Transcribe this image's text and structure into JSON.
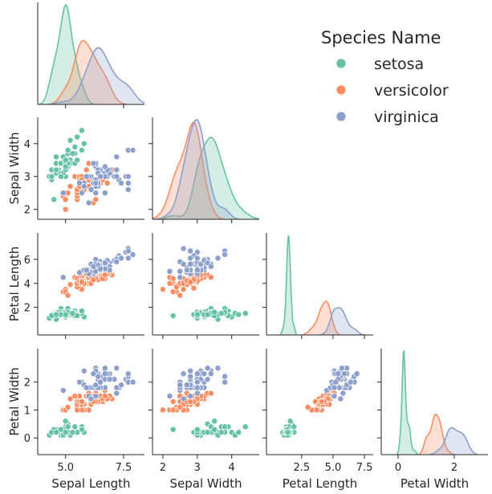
{
  "chart_data": {
    "type": "scatter",
    "subtype": "pairplot-lower-triangle",
    "variables": [
      "Sepal Length",
      "Sepal Width",
      "Petal Length",
      "Petal Width"
    ],
    "ranges": {
      "Sepal Length": [
        3.8,
        8.4
      ],
      "Sepal Width": [
        1.7,
        4.8
      ],
      "Petal Length": [
        -0.3,
        8.2
      ],
      "Petal Width": [
        -0.6,
        3.2
      ]
    },
    "ticks": {
      "Sepal Length": [
        "5.0",
        "7.5"
      ],
      "Sepal Width": [
        "2",
        "3",
        "4"
      ],
      "Petal Length": [
        "2.5",
        "5.0",
        "7.5"
      ],
      "Petal Width": [
        "0",
        "2"
      ]
    },
    "y_ticks": {
      "Sepal Width": [
        "2",
        "3",
        "4"
      ],
      "Petal Length": [
        "2",
        "4",
        "6"
      ],
      "Petal Width": [
        "0",
        "1",
        "2"
      ]
    },
    "legend": {
      "title": "Species Name",
      "placement": "top-right"
    },
    "grid": false,
    "series": [
      {
        "name": "setosa",
        "color": "#66c2a5",
        "points": [
          [
            5.1,
            3.5,
            1.4,
            0.2
          ],
          [
            4.9,
            3.0,
            1.4,
            0.2
          ],
          [
            4.7,
            3.2,
            1.3,
            0.2
          ],
          [
            4.6,
            3.1,
            1.5,
            0.2
          ],
          [
            5.0,
            3.6,
            1.4,
            0.2
          ],
          [
            5.4,
            3.9,
            1.7,
            0.4
          ],
          [
            4.6,
            3.4,
            1.4,
            0.3
          ],
          [
            5.0,
            3.4,
            1.5,
            0.2
          ],
          [
            4.4,
            2.9,
            1.4,
            0.2
          ],
          [
            4.9,
            3.1,
            1.5,
            0.1
          ],
          [
            5.4,
            3.7,
            1.5,
            0.2
          ],
          [
            4.8,
            3.4,
            1.6,
            0.2
          ],
          [
            4.8,
            3.0,
            1.4,
            0.1
          ],
          [
            4.3,
            3.0,
            1.1,
            0.1
          ],
          [
            5.8,
            4.0,
            1.2,
            0.2
          ],
          [
            5.7,
            4.4,
            1.5,
            0.4
          ],
          [
            5.4,
            3.9,
            1.3,
            0.4
          ],
          [
            5.1,
            3.5,
            1.4,
            0.3
          ],
          [
            5.7,
            3.8,
            1.7,
            0.3
          ],
          [
            5.1,
            3.8,
            1.5,
            0.3
          ],
          [
            5.4,
            3.4,
            1.7,
            0.2
          ],
          [
            5.1,
            3.7,
            1.5,
            0.4
          ],
          [
            4.6,
            3.6,
            1.0,
            0.2
          ],
          [
            5.1,
            3.3,
            1.7,
            0.5
          ],
          [
            4.8,
            3.4,
            1.9,
            0.2
          ],
          [
            5.0,
            3.0,
            1.6,
            0.2
          ],
          [
            5.0,
            3.4,
            1.6,
            0.4
          ],
          [
            5.2,
            3.5,
            1.5,
            0.2
          ],
          [
            5.2,
            3.4,
            1.4,
            0.2
          ],
          [
            4.7,
            3.2,
            1.6,
            0.2
          ],
          [
            4.8,
            3.1,
            1.6,
            0.2
          ],
          [
            5.4,
            3.4,
            1.5,
            0.4
          ],
          [
            5.2,
            4.1,
            1.5,
            0.1
          ],
          [
            5.5,
            4.2,
            1.4,
            0.2
          ],
          [
            4.9,
            3.1,
            1.5,
            0.2
          ],
          [
            5.0,
            3.2,
            1.2,
            0.2
          ],
          [
            5.5,
            3.5,
            1.3,
            0.2
          ],
          [
            4.9,
            3.6,
            1.4,
            0.1
          ],
          [
            4.4,
            3.0,
            1.3,
            0.2
          ],
          [
            5.1,
            3.4,
            1.5,
            0.2
          ],
          [
            5.0,
            3.5,
            1.3,
            0.3
          ],
          [
            4.5,
            2.3,
            1.3,
            0.3
          ],
          [
            4.4,
            3.2,
            1.3,
            0.2
          ],
          [
            5.0,
            3.5,
            1.6,
            0.6
          ],
          [
            5.1,
            3.8,
            1.9,
            0.4
          ],
          [
            4.8,
            3.0,
            1.4,
            0.3
          ],
          [
            5.1,
            3.8,
            1.6,
            0.2
          ],
          [
            4.6,
            3.2,
            1.4,
            0.2
          ],
          [
            5.3,
            3.7,
            1.5,
            0.2
          ],
          [
            5.0,
            3.3,
            1.4,
            0.2
          ]
        ]
      },
      {
        "name": "versicolor",
        "color": "#fc8d62",
        "points": [
          [
            7.0,
            3.2,
            4.7,
            1.4
          ],
          [
            6.4,
            3.2,
            4.5,
            1.5
          ],
          [
            6.9,
            3.1,
            4.9,
            1.5
          ],
          [
            5.5,
            2.3,
            4.0,
            1.3
          ],
          [
            6.5,
            2.8,
            4.6,
            1.5
          ],
          [
            5.7,
            2.8,
            4.5,
            1.3
          ],
          [
            6.3,
            3.3,
            4.7,
            1.6
          ],
          [
            4.9,
            2.4,
            3.3,
            1.0
          ],
          [
            6.6,
            2.9,
            4.6,
            1.3
          ],
          [
            5.2,
            2.7,
            3.9,
            1.4
          ],
          [
            5.0,
            2.0,
            3.5,
            1.0
          ],
          [
            5.9,
            3.0,
            4.2,
            1.5
          ],
          [
            6.0,
            2.2,
            4.0,
            1.0
          ],
          [
            6.1,
            2.9,
            4.7,
            1.4
          ],
          [
            5.6,
            2.9,
            3.6,
            1.3
          ],
          [
            6.7,
            3.1,
            4.4,
            1.4
          ],
          [
            5.6,
            3.0,
            4.5,
            1.5
          ],
          [
            5.8,
            2.7,
            4.1,
            1.0
          ],
          [
            6.2,
            2.2,
            4.5,
            1.5
          ],
          [
            5.6,
            2.5,
            3.9,
            1.1
          ],
          [
            5.9,
            3.2,
            4.8,
            1.8
          ],
          [
            6.1,
            2.8,
            4.0,
            1.3
          ],
          [
            6.3,
            2.5,
            4.9,
            1.5
          ],
          [
            6.1,
            2.8,
            4.7,
            1.2
          ],
          [
            6.4,
            2.9,
            4.3,
            1.3
          ],
          [
            6.6,
            3.0,
            4.4,
            1.4
          ],
          [
            6.8,
            2.8,
            4.8,
            1.4
          ],
          [
            6.7,
            3.0,
            5.0,
            1.7
          ],
          [
            6.0,
            2.9,
            4.5,
            1.5
          ],
          [
            5.7,
            2.6,
            3.5,
            1.0
          ],
          [
            5.5,
            2.4,
            3.8,
            1.1
          ],
          [
            5.5,
            2.4,
            3.7,
            1.0
          ],
          [
            5.8,
            2.7,
            3.9,
            1.2
          ],
          [
            6.0,
            2.7,
            5.1,
            1.6
          ],
          [
            5.4,
            3.0,
            4.5,
            1.5
          ],
          [
            6.0,
            3.4,
            4.5,
            1.6
          ],
          [
            6.7,
            3.1,
            4.7,
            1.5
          ],
          [
            6.3,
            2.3,
            4.4,
            1.3
          ],
          [
            5.6,
            3.0,
            4.1,
            1.3
          ],
          [
            5.5,
            2.5,
            4.0,
            1.3
          ],
          [
            5.5,
            2.6,
            4.4,
            1.2
          ],
          [
            6.1,
            3.0,
            4.6,
            1.4
          ],
          [
            5.8,
            2.6,
            4.0,
            1.2
          ],
          [
            5.0,
            2.3,
            3.3,
            1.0
          ],
          [
            5.6,
            2.7,
            4.2,
            1.3
          ],
          [
            5.7,
            3.0,
            4.2,
            1.2
          ],
          [
            5.7,
            2.9,
            4.2,
            1.3
          ],
          [
            6.2,
            2.9,
            4.3,
            1.3
          ],
          [
            5.1,
            2.5,
            3.0,
            1.1
          ],
          [
            5.7,
            2.8,
            4.1,
            1.3
          ]
        ]
      },
      {
        "name": "virginica",
        "color": "#8da0cb",
        "points": [
          [
            6.3,
            3.3,
            6.0,
            2.5
          ],
          [
            5.8,
            2.7,
            5.1,
            1.9
          ],
          [
            7.1,
            3.0,
            5.9,
            2.1
          ],
          [
            6.3,
            2.9,
            5.6,
            1.8
          ],
          [
            6.5,
            3.0,
            5.8,
            2.2
          ],
          [
            7.6,
            3.0,
            6.6,
            2.1
          ],
          [
            4.9,
            2.5,
            4.5,
            1.7
          ],
          [
            7.3,
            2.9,
            6.3,
            1.8
          ],
          [
            6.7,
            2.5,
            5.8,
            1.8
          ],
          [
            7.2,
            3.6,
            6.1,
            2.5
          ],
          [
            6.5,
            3.2,
            5.1,
            2.0
          ],
          [
            6.4,
            2.7,
            5.3,
            1.9
          ],
          [
            6.8,
            3.0,
            5.5,
            2.1
          ],
          [
            5.7,
            2.5,
            5.0,
            2.0
          ],
          [
            5.8,
            2.8,
            5.1,
            2.4
          ],
          [
            6.4,
            3.2,
            5.3,
            2.3
          ],
          [
            6.5,
            3.0,
            5.5,
            1.8
          ],
          [
            7.7,
            3.8,
            6.7,
            2.2
          ],
          [
            7.7,
            2.6,
            6.9,
            2.3
          ],
          [
            6.0,
            2.2,
            5.0,
            1.5
          ],
          [
            6.9,
            3.2,
            5.7,
            2.3
          ],
          [
            5.6,
            2.8,
            4.9,
            2.0
          ],
          [
            7.7,
            2.8,
            6.7,
            2.0
          ],
          [
            6.3,
            2.7,
            4.9,
            1.8
          ],
          [
            6.7,
            3.3,
            5.7,
            2.1
          ],
          [
            7.2,
            3.2,
            6.0,
            1.8
          ],
          [
            6.2,
            2.8,
            4.8,
            1.8
          ],
          [
            6.1,
            3.0,
            4.9,
            1.8
          ],
          [
            6.4,
            2.8,
            5.6,
            2.1
          ],
          [
            7.2,
            3.0,
            5.8,
            1.6
          ],
          [
            7.4,
            2.8,
            6.1,
            1.9
          ],
          [
            7.9,
            3.8,
            6.4,
            2.0
          ],
          [
            6.4,
            2.8,
            5.6,
            2.2
          ],
          [
            6.3,
            2.8,
            5.1,
            1.5
          ],
          [
            6.1,
            2.6,
            5.6,
            1.4
          ],
          [
            7.7,
            3.0,
            6.1,
            2.3
          ],
          [
            6.3,
            3.4,
            5.6,
            2.4
          ],
          [
            6.4,
            3.1,
            5.5,
            1.8
          ],
          [
            6.0,
            3.0,
            4.8,
            1.8
          ],
          [
            6.9,
            3.1,
            5.4,
            2.1
          ],
          [
            6.7,
            3.1,
            5.6,
            2.4
          ],
          [
            6.9,
            3.1,
            5.1,
            2.3
          ],
          [
            5.8,
            2.7,
            5.1,
            1.9
          ],
          [
            6.8,
            3.2,
            5.9,
            2.3
          ],
          [
            6.7,
            3.3,
            5.7,
            2.5
          ],
          [
            6.7,
            3.0,
            5.2,
            2.3
          ],
          [
            6.3,
            2.5,
            5.0,
            1.9
          ],
          [
            6.5,
            3.0,
            5.2,
            2.0
          ],
          [
            6.2,
            3.4,
            5.4,
            2.3
          ],
          [
            5.9,
            3.0,
            5.1,
            1.8
          ]
        ]
      }
    ]
  }
}
